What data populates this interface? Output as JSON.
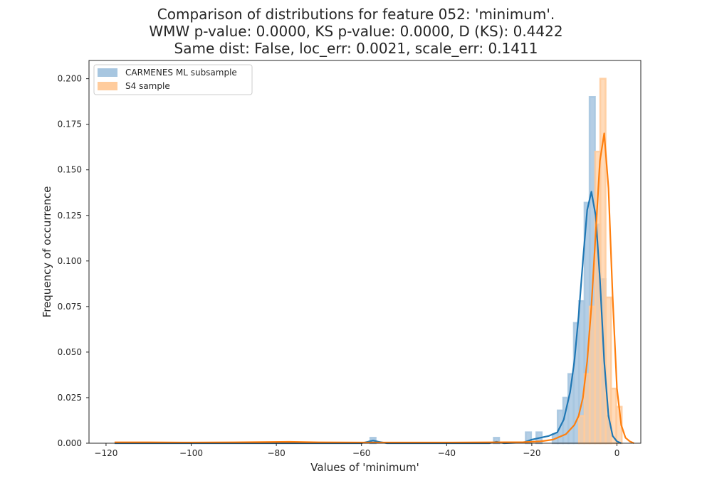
{
  "chart_data": {
    "type": "histogram",
    "title_lines": [
      "Comparison of distributions for feature 052: 'minimum'.",
      "WMW p-value: 0.0000, KS p-value: 0.0000, D (KS): 0.4422",
      "Same dist: False, loc_err: 0.0021, scale_err: 0.1411"
    ],
    "xlabel": "Values of 'minimum'",
    "ylabel": "Frequency of occurrence",
    "xlim": [
      -124,
      5.6
    ],
    "ylim": [
      0,
      0.21
    ],
    "xticks": [
      -120,
      -100,
      -80,
      -60,
      -40,
      -20,
      0
    ],
    "xtick_labels": [
      "−120",
      "−100",
      "−80",
      "−60",
      "−40",
      "−20",
      "0"
    ],
    "yticks": [
      0,
      0.025,
      0.05,
      0.075,
      0.1,
      0.125,
      0.15,
      0.175,
      0.2
    ],
    "ytick_labels": [
      "0.000",
      "0.025",
      "0.050",
      "0.075",
      "0.100",
      "0.125",
      "0.150",
      "0.175",
      "0.200"
    ],
    "grid": false,
    "legend_position": "upper-left",
    "series": [
      {
        "name": "CARMENES ML subsample",
        "color": "#1f77b4",
        "fill_color": "#a7c6e0",
        "bin_width": 1.25,
        "bins": [
          {
            "x": -57.3,
            "y": 0.003
          },
          {
            "x": -28.3,
            "y": 0.003
          },
          {
            "x": -20.8,
            "y": 0.006
          },
          {
            "x": -18.3,
            "y": 0.006
          },
          {
            "x": -14.5,
            "y": 0.005
          },
          {
            "x": -13.3,
            "y": 0.018
          },
          {
            "x": -12.0,
            "y": 0.025
          },
          {
            "x": -10.8,
            "y": 0.038
          },
          {
            "x": -9.5,
            "y": 0.066
          },
          {
            "x": -8.3,
            "y": 0.078
          },
          {
            "x": -7.0,
            "y": 0.132
          },
          {
            "x": -5.8,
            "y": 0.19
          },
          {
            "x": -4.5,
            "y": 0.12
          },
          {
            "x": -3.3,
            "y": 0.09
          },
          {
            "x": -2.0,
            "y": 0.015
          }
        ],
        "kde": [
          [
            -118,
            0
          ],
          [
            -60,
            0
          ],
          [
            -58.5,
            0.0008
          ],
          [
            -57.3,
            0.0015
          ],
          [
            -56,
            0.0008
          ],
          [
            -54,
            0
          ],
          [
            -30,
            0
          ],
          [
            -28.3,
            0.0008
          ],
          [
            -26.5,
            0
          ],
          [
            -22,
            0.0004
          ],
          [
            -20,
            0.002
          ],
          [
            -18,
            0.003
          ],
          [
            -16,
            0.004
          ],
          [
            -14,
            0.006
          ],
          [
            -12.5,
            0.013
          ],
          [
            -11,
            0.028
          ],
          [
            -10,
            0.045
          ],
          [
            -9,
            0.07
          ],
          [
            -8,
            0.1
          ],
          [
            -7,
            0.128
          ],
          [
            -6,
            0.138
          ],
          [
            -5,
            0.125
          ],
          [
            -4,
            0.09
          ],
          [
            -3,
            0.045
          ],
          [
            -2,
            0.015
          ],
          [
            -1,
            0.004
          ],
          [
            0,
            0.001
          ],
          [
            1,
            0
          ]
        ]
      },
      {
        "name": "S4 sample",
        "color": "#ff7f0e",
        "fill_color": "#ffcc9d",
        "bin_width": 1.25,
        "bins": [
          {
            "x": -8.3,
            "y": 0.015
          },
          {
            "x": -7.0,
            "y": 0.038
          },
          {
            "x": -5.8,
            "y": 0.075
          },
          {
            "x": -4.5,
            "y": 0.16
          },
          {
            "x": -3.3,
            "y": 0.2
          },
          {
            "x": -2.0,
            "y": 0.08
          },
          {
            "x": -0.8,
            "y": 0.03
          },
          {
            "x": 0.5,
            "y": 0.02
          }
        ],
        "kde": [
          [
            -118,
            0.0005
          ],
          [
            -110,
            0.0005
          ],
          [
            -100,
            0.0004
          ],
          [
            -90,
            0.0005
          ],
          [
            -77,
            0.0008
          ],
          [
            -70,
            0.0005
          ],
          [
            -60,
            0.0004
          ],
          [
            -50,
            0.0004
          ],
          [
            -40,
            0.0004
          ],
          [
            -30,
            0.0005
          ],
          [
            -22,
            0.0006
          ],
          [
            -18,
            0.001
          ],
          [
            -15,
            0.002
          ],
          [
            -12,
            0.005
          ],
          [
            -10,
            0.01
          ],
          [
            -9,
            0.015
          ],
          [
            -8,
            0.025
          ],
          [
            -7,
            0.045
          ],
          [
            -6,
            0.075
          ],
          [
            -5,
            0.115
          ],
          [
            -4,
            0.155
          ],
          [
            -3,
            0.17
          ],
          [
            -2,
            0.14
          ],
          [
            -1,
            0.08
          ],
          [
            0,
            0.03
          ],
          [
            1,
            0.01
          ],
          [
            2,
            0.003
          ],
          [
            3,
            0.001
          ],
          [
            4,
            0
          ]
        ]
      }
    ]
  }
}
